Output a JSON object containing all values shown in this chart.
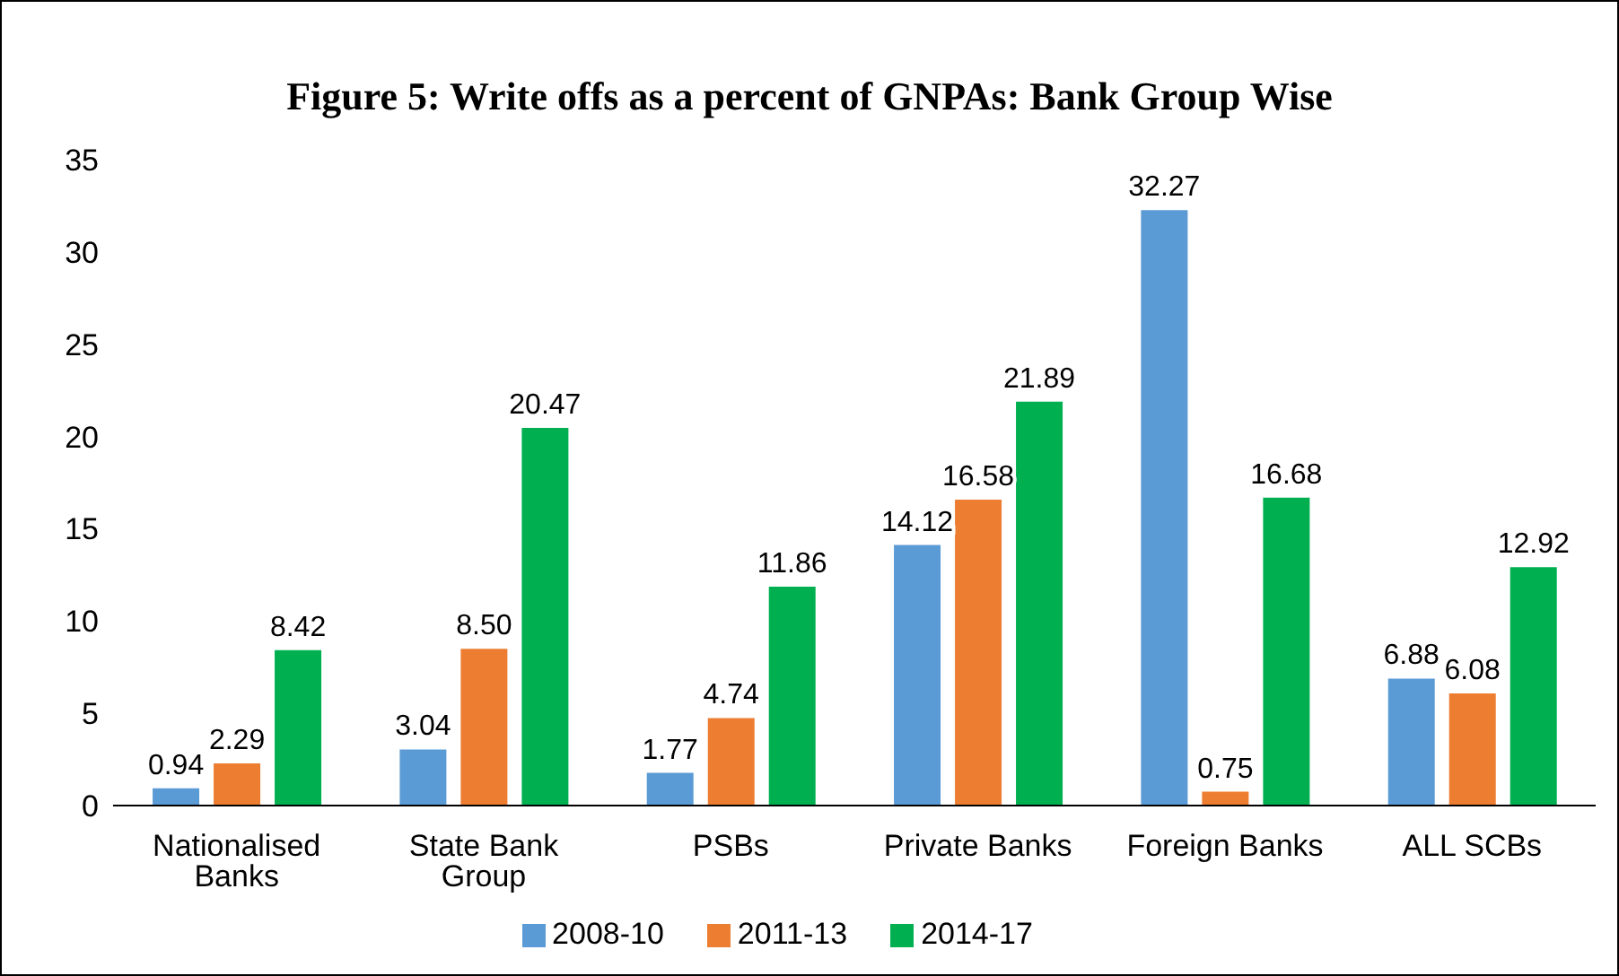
{
  "chart_data": {
    "type": "bar",
    "title": "Figure 5: Write offs as a percent of GNPAs: Bank Group Wise",
    "categories": [
      "Nationalised Banks",
      "State Bank Group",
      "PSBs",
      "Private Banks",
      "Foreign Banks",
      "ALL SCBs"
    ],
    "series": [
      {
        "name": "2008-10",
        "color": "#5b9bd5",
        "values": [
          0.94,
          3.04,
          1.77,
          14.12,
          32.27,
          6.88
        ],
        "value_labels": [
          "0.94",
          "3.04",
          "1.77",
          "14.12",
          "32.27",
          "6.88"
        ]
      },
      {
        "name": "2011-13",
        "color": "#ed7d31",
        "values": [
          2.29,
          8.5,
          4.74,
          16.58,
          0.75,
          6.08
        ],
        "value_labels": [
          "2.29",
          "8.50",
          "4.74",
          "16.58",
          "0.75",
          "6.08"
        ]
      },
      {
        "name": "2014-17",
        "color": "#00b050",
        "values": [
          8.42,
          20.47,
          11.86,
          21.89,
          16.68,
          12.92
        ],
        "value_labels": [
          "8.42",
          "20.47",
          "11.86",
          "21.89",
          "16.68",
          "12.92"
        ]
      }
    ],
    "ylim": [
      0,
      35
    ],
    "yticks": [
      0,
      5,
      10,
      15,
      20,
      25,
      30,
      35
    ],
    "grid": false,
    "legend": "bottom"
  }
}
